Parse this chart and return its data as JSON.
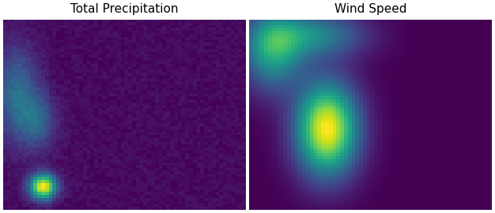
{
  "title_left": "Total Precipitation",
  "title_right": "Wind Speed",
  "lon_min": -12.0,
  "lon_max": 10.0,
  "lat_min": 36.0,
  "lat_max": 62.0,
  "colormap": "viridis",
  "title_fontsize": 11,
  "figsize": [
    6.26,
    2.7
  ],
  "dpi": 100,
  "grid_size": 64
}
